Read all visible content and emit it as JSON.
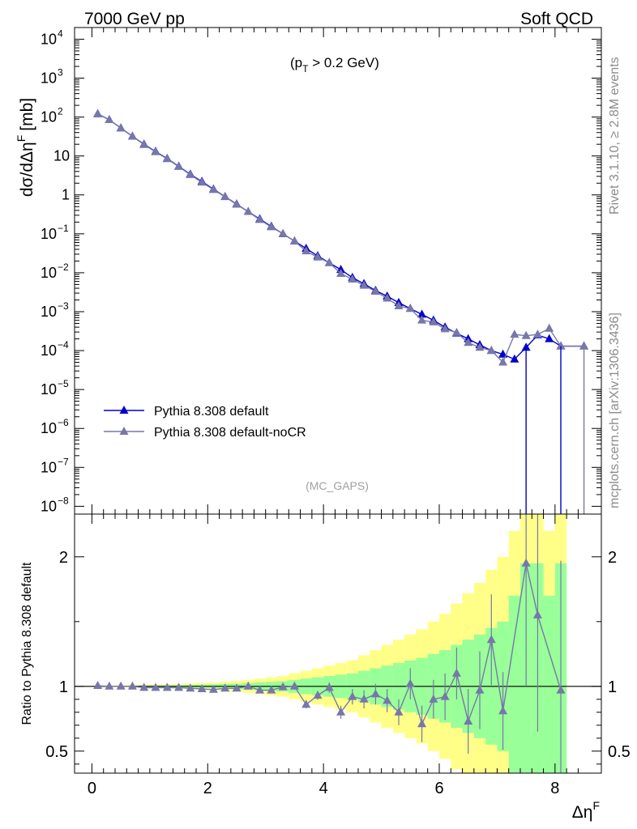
{
  "header": {
    "left": "7000 GeV pp",
    "right": "Soft QCD"
  },
  "side_labels": {
    "rivet": "Rivet 3.1.10, ≥ 2.8M events",
    "mcplots": "mcplots.cern.ch [arXiv:1306.3436]"
  },
  "chart_data": {
    "type": "line",
    "x_label": "Δη",
    "x_label_sup": "F",
    "xlim": [
      -0.3,
      8.8
    ],
    "x_ticks": [
      0,
      2,
      4,
      6,
      8
    ],
    "main": {
      "y_label": "dσ/dΔη",
      "y_label_sup": "F",
      "y_label_unit": "[mb]",
      "y_scale": "log",
      "ylim_log10": [
        -8.2,
        4.3
      ],
      "annotation": "(p",
      "annotation_sub": "T",
      "annotation_rest": " > 0.2 GeV)",
      "watermark": "(MC_GAPS)",
      "y_ticks": [
        {
          "e": 4,
          "label": "10",
          "sup": "4"
        },
        {
          "e": 3,
          "label": "10",
          "sup": "3"
        },
        {
          "e": 2,
          "label": "10",
          "sup": "2"
        },
        {
          "e": 1,
          "label": "10",
          "sup": ""
        },
        {
          "e": 0,
          "label": "1",
          "sup": ""
        },
        {
          "e": -1,
          "label": "10",
          "sup": "−1"
        },
        {
          "e": -2,
          "label": "10",
          "sup": "−2"
        },
        {
          "e": -3,
          "label": "10",
          "sup": "−3"
        },
        {
          "e": -4,
          "label": "10",
          "sup": "−4"
        },
        {
          "e": -5,
          "label": "10",
          "sup": "−5"
        },
        {
          "e": -6,
          "label": "10",
          "sup": "−6"
        },
        {
          "e": -7,
          "label": "10",
          "sup": "−7"
        },
        {
          "e": -8,
          "label": "10",
          "sup": "−8"
        }
      ],
      "legend_position": "middle-left",
      "series": [
        {
          "name": "Pythia 8.308 default",
          "color": "#0000cc",
          "x": [
            0.1,
            0.3,
            0.5,
            0.7,
            0.9,
            1.1,
            1.3,
            1.5,
            1.7,
            1.9,
            2.1,
            2.3,
            2.5,
            2.7,
            2.9,
            3.1,
            3.3,
            3.5,
            3.7,
            3.9,
            4.1,
            4.3,
            4.5,
            4.7,
            4.9,
            5.1,
            5.3,
            5.5,
            5.7,
            5.9,
            6.1,
            6.3,
            6.5,
            6.7,
            6.9,
            7.1,
            7.3,
            7.5,
            7.7,
            7.9,
            8.1,
            8.5
          ],
          "y": [
            120,
            85,
            52,
            32,
            20,
            13,
            8.6,
            5.4,
            3.4,
            2.2,
            1.4,
            0.9,
            0.58,
            0.37,
            0.24,
            0.155,
            0.1,
            0.065,
            0.042,
            0.027,
            0.018,
            0.012,
            0.0075,
            0.0052,
            0.0035,
            0.0025,
            0.0017,
            0.0012,
            0.00085,
            0.0006,
            0.0004,
            0.00028,
            0.0002,
            0.00014,
            0.0001,
            8e-05,
            6e-05,
            0.00012,
            0.00025,
            0.0002,
            0.00013,
            0.00013
          ]
        },
        {
          "name": "Pythia 8.308 default-noCR",
          "color": "#7777aa",
          "x": [
            0.1,
            0.3,
            0.5,
            0.7,
            0.9,
            1.1,
            1.3,
            1.5,
            1.7,
            1.9,
            2.1,
            2.3,
            2.5,
            2.7,
            2.9,
            3.1,
            3.3,
            3.5,
            3.7,
            3.9,
            4.1,
            4.3,
            4.5,
            4.7,
            4.9,
            5.1,
            5.3,
            5.5,
            5.7,
            5.9,
            6.1,
            6.3,
            6.5,
            6.7,
            6.9,
            7.1,
            7.3,
            7.5,
            7.7,
            7.9,
            8.1,
            8.5
          ],
          "y": [
            121,
            85,
            52,
            32,
            19.5,
            12.7,
            8.4,
            5.3,
            3.3,
            2.1,
            1.36,
            0.89,
            0.57,
            0.37,
            0.23,
            0.15,
            0.1,
            0.065,
            0.036,
            0.025,
            0.018,
            0.0095,
            0.0068,
            0.0047,
            0.0033,
            0.0022,
            0.0014,
            0.0012,
            0.0006,
            0.00054,
            0.00036,
            0.00029,
            0.00016,
            0.00012,
            0.0001,
            5e-05,
            0.00026,
            0.00024,
            0.00026,
            0.00037,
            0.00013,
            0.00013
          ]
        }
      ]
    },
    "ratio": {
      "y_label": "Ratio to Pythia 8.308 default",
      "ylim": [
        0.33,
        2.33
      ],
      "y_ticks": [
        0.5,
        1,
        2
      ],
      "y_tick_labels": [
        "0.5",
        "1",
        "2"
      ],
      "band_colors": {
        "inner": "#99ff99",
        "outer": "#ffff88"
      },
      "band_x_edges": [
        0,
        0.2,
        0.4,
        0.6,
        0.8,
        1.0,
        1.2,
        1.4,
        1.6,
        1.8,
        2.0,
        2.2,
        2.4,
        2.6,
        2.8,
        3.0,
        3.2,
        3.4,
        3.6,
        3.8,
        4.0,
        4.2,
        4.4,
        4.6,
        4.8,
        5.0,
        5.2,
        5.4,
        5.6,
        5.8,
        6.0,
        6.2,
        6.4,
        6.6,
        6.8,
        7.0,
        7.2,
        7.4,
        7.6,
        7.8,
        8.0,
        8.2
      ],
      "band_inner": [
        0.003,
        0.003,
        0.004,
        0.005,
        0.006,
        0.007,
        0.008,
        0.009,
        0.011,
        0.013,
        0.015,
        0.018,
        0.021,
        0.025,
        0.03,
        0.035,
        0.04,
        0.05,
        0.06,
        0.07,
        0.08,
        0.09,
        0.1,
        0.12,
        0.14,
        0.16,
        0.18,
        0.2,
        0.22,
        0.25,
        0.28,
        0.32,
        0.36,
        0.4,
        0.45,
        0.5,
        0.7,
        0.95,
        0.95,
        0.7,
        0.95
      ],
      "band_outer": [
        0.005,
        0.006,
        0.008,
        0.01,
        0.012,
        0.014,
        0.016,
        0.018,
        0.022,
        0.026,
        0.03,
        0.036,
        0.042,
        0.05,
        0.06,
        0.07,
        0.08,
        0.1,
        0.12,
        0.14,
        0.16,
        0.18,
        0.2,
        0.24,
        0.28,
        0.32,
        0.36,
        0.4,
        0.44,
        0.5,
        0.56,
        0.64,
        0.72,
        0.8,
        0.9,
        1.0,
        1.2,
        1.4,
        1.4,
        1.2,
        1.4
      ],
      "points": {
        "name": "Pythia 8.308 default-noCR",
        "color": "#7777aa",
        "x": [
          0.1,
          0.3,
          0.5,
          0.7,
          0.9,
          1.1,
          1.3,
          1.5,
          1.7,
          1.9,
          2.1,
          2.3,
          2.5,
          2.7,
          2.9,
          3.1,
          3.3,
          3.5,
          3.7,
          3.9,
          4.1,
          4.3,
          4.5,
          4.7,
          4.9,
          5.1,
          5.3,
          5.5,
          5.7,
          5.9,
          6.1,
          6.3,
          6.5,
          6.7,
          6.9,
          7.1,
          7.5,
          7.7,
          8.1
        ],
        "y": [
          1.005,
          1.0,
          1.0,
          1.0,
          0.99,
          0.99,
          0.99,
          0.99,
          0.985,
          0.98,
          0.975,
          0.985,
          0.985,
          1.0,
          0.97,
          0.97,
          0.995,
          1.0,
          0.86,
          0.93,
          0.99,
          0.8,
          0.92,
          0.9,
          0.94,
          0.89,
          0.8,
          1.02,
          0.71,
          0.9,
          0.92,
          1.1,
          0.73,
          0.97,
          1.36,
          0.81,
          1.95,
          1.55,
          0.97
        ],
        "err": [
          0.005,
          0.005,
          0.005,
          0.005,
          0.005,
          0.005,
          0.005,
          0.005,
          0.006,
          0.007,
          0.008,
          0.01,
          0.012,
          0.014,
          0.016,
          0.018,
          0.02,
          0.025,
          0.03,
          0.035,
          0.04,
          0.05,
          0.06,
          0.07,
          0.08,
          0.09,
          0.1,
          0.12,
          0.14,
          0.15,
          0.18,
          0.2,
          0.25,
          0.3,
          0.35,
          0.3,
          0.95,
          0.9,
          1.0
        ]
      }
    }
  }
}
